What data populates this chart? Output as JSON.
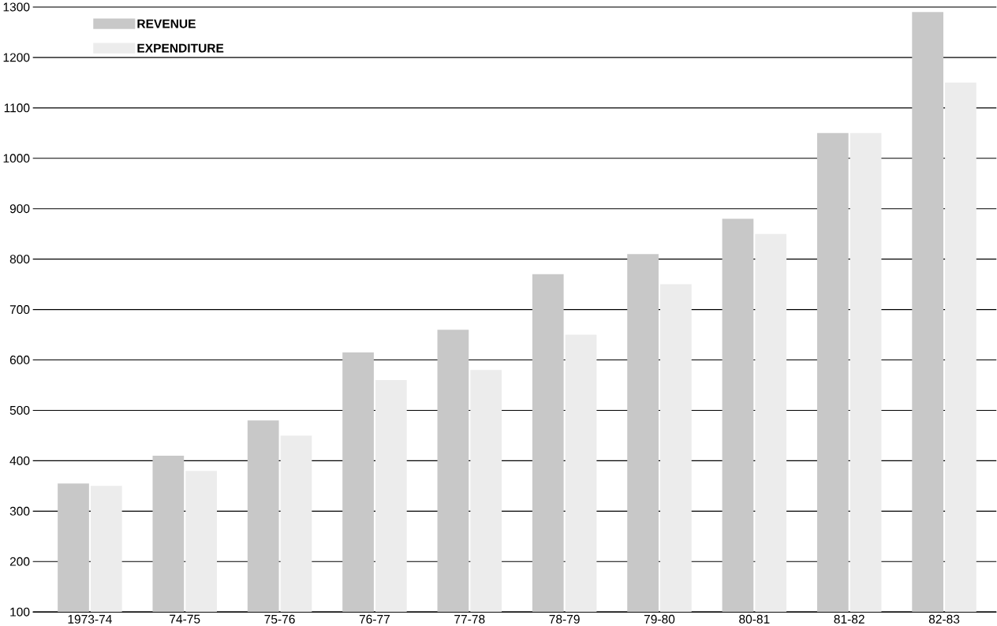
{
  "chart_data": {
    "type": "bar",
    "categories": [
      "1973-74",
      "74-75",
      "75-76",
      "76-77",
      "77-78",
      "78-79",
      "79-80",
      "80-81",
      "81-82",
      "82-83"
    ],
    "series": [
      {
        "name": "REVENUE",
        "color": "#c8c8c8",
        "values": [
          355,
          410,
          480,
          615,
          660,
          770,
          810,
          880,
          1050,
          1290
        ]
      },
      {
        "name": "EXPENDITURE",
        "color": "#ececec",
        "values": [
          350,
          380,
          450,
          560,
          580,
          650,
          750,
          850,
          1050,
          1150
        ]
      }
    ],
    "ylim": [
      100,
      1300
    ],
    "yticks": [
      100,
      200,
      300,
      400,
      500,
      600,
      700,
      800,
      900,
      1000,
      1100,
      1200,
      1300
    ],
    "grid": "y",
    "legend": "top left"
  }
}
